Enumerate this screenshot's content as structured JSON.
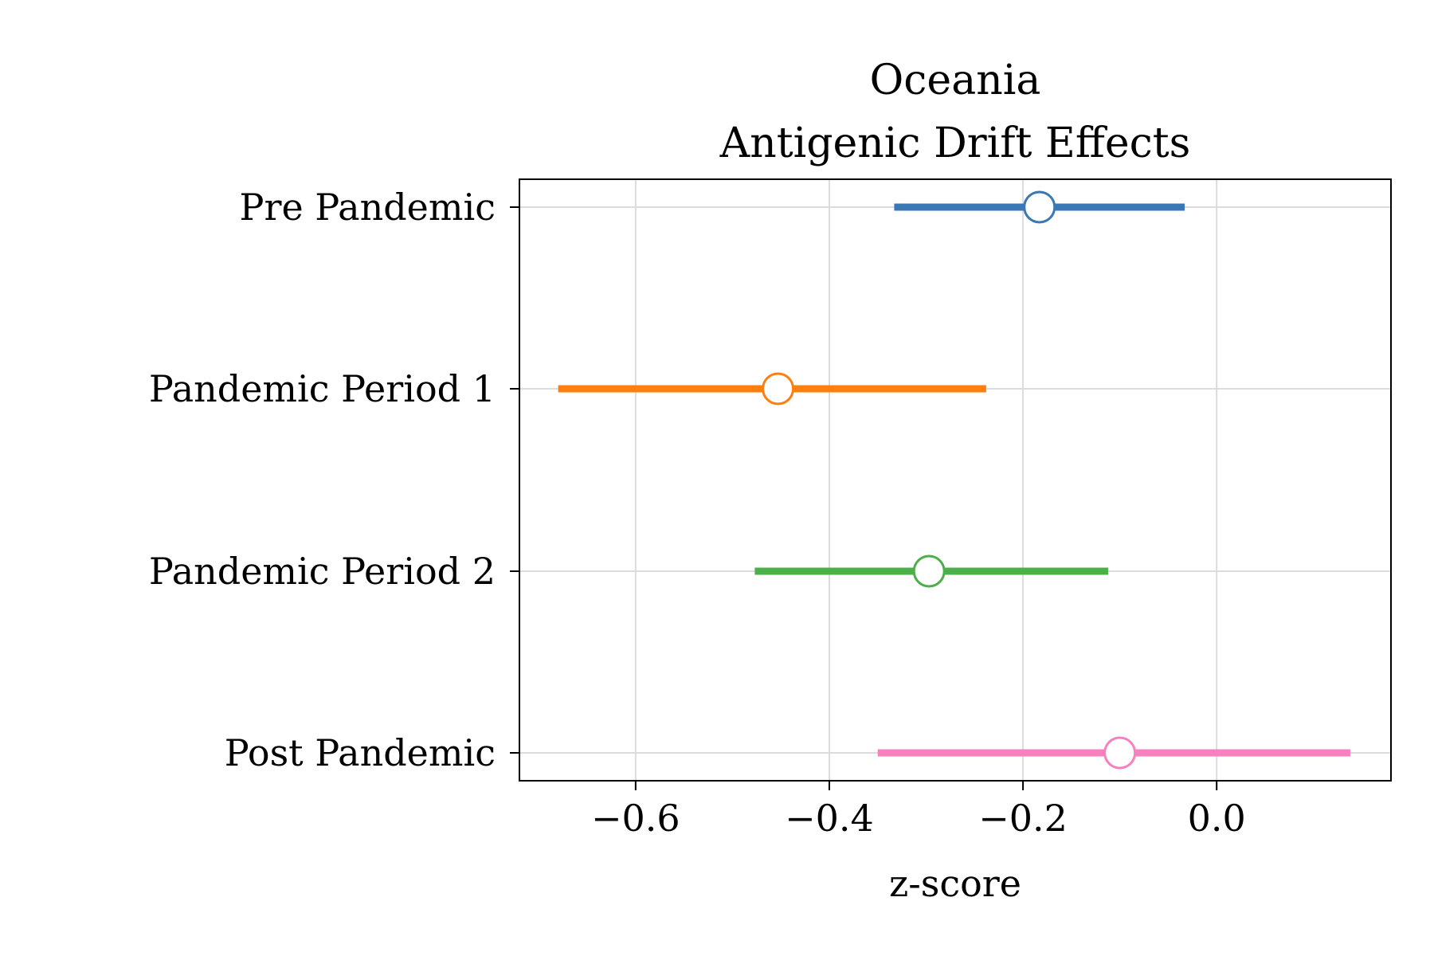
{
  "chart_data": {
    "type": "forest",
    "title_lines": [
      "Oceania",
      "Antigenic Drift Effects"
    ],
    "xlabel": "z-score",
    "ylabel": "",
    "xlim": [
      -0.72,
      0.18
    ],
    "xticks": [
      -0.6,
      -0.4,
      -0.2,
      0.0
    ],
    "xtick_labels": [
      "−0.6",
      "−0.4",
      "−0.2",
      "0.0"
    ],
    "grid": true,
    "categories": [
      "Pre Pandemic",
      "Pandemic Period 1",
      "Pandemic Period 2",
      "Post Pandemic"
    ],
    "points": [
      {
        "category": "Pre Pandemic",
        "estimate": -0.183,
        "lower": -0.333,
        "upper": -0.033,
        "color": "#3a78b5"
      },
      {
        "category": "Pandemic Period 1",
        "estimate": -0.453,
        "lower": -0.68,
        "upper": -0.238,
        "color": "#ff7f0e"
      },
      {
        "category": "Pandemic Period 2",
        "estimate": -0.297,
        "lower": -0.477,
        "upper": -0.112,
        "color": "#4daf4a"
      },
      {
        "category": "Post Pandemic",
        "estimate": -0.1,
        "lower": -0.35,
        "upper": 0.138,
        "color": "#f781bf"
      }
    ]
  }
}
